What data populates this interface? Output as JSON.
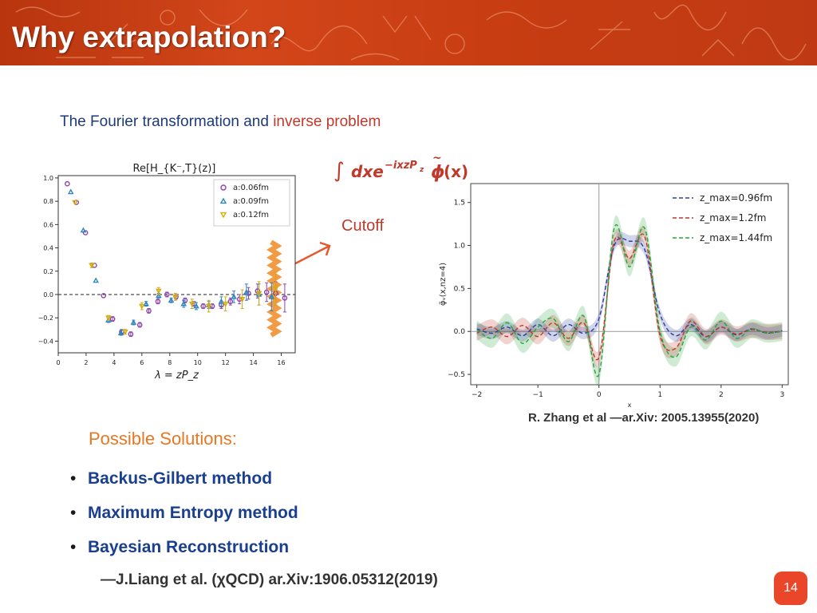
{
  "slide": {
    "title": "Why extrapolation?",
    "subtitle_part1": "The Fourier transformation and ",
    "subtitle_highlight": "inverse problem",
    "cutoff_label": "Cutoff",
    "citation_right": "R. Zhang et al —ar.Xiv: 2005.13955(2020)",
    "solutions_heading": "Possible Solutions:",
    "solutions": [
      "Backus-Gilbert method",
      "Maximum Entropy method",
      "Bayesian Reconstruction"
    ],
    "citation_bottom": "—J.Liang et al. (χQCD) ar.Xiv:1906.05312(2019)",
    "page_number": "14",
    "colors": {
      "banner": "#c83d12",
      "highlight": "#c0392b",
      "solutions_heading": "#e87722",
      "solutions": "#1a3f8f",
      "page_badge": "#e9462a"
    }
  },
  "chart_data": [
    {
      "type": "scatter",
      "title": "Re[H_{K⁻,T}(z)]",
      "xlabel": "λ = zP_z",
      "ylabel": "",
      "xlim": [
        0,
        17
      ],
      "ylim": [
        -0.5,
        1.02
      ],
      "xticks": [
        0,
        2,
        4,
        6,
        8,
        10,
        12,
        14,
        16
      ],
      "yticks": [
        1.0,
        0.8,
        0.6,
        0.4,
        0.2,
        0.0,
        -0.2,
        -0.4
      ],
      "reference_line_y": 0,
      "legend_position": "top-right",
      "series": [
        {
          "name": "a:0.06fm",
          "color": "#8e44ad",
          "marker": "circle",
          "x": [
            0.65,
            1.3,
            1.95,
            2.6,
            3.25,
            3.9,
            4.55,
            5.2,
            5.85,
            6.5,
            7.15,
            7.8,
            8.45,
            9.1,
            9.75,
            10.4,
            11.05,
            11.7,
            12.35,
            13.0,
            13.65,
            14.3,
            14.95,
            15.6,
            16.25
          ],
          "y": [
            0.95,
            0.79,
            0.53,
            0.25,
            -0.01,
            -0.21,
            -0.32,
            -0.34,
            -0.26,
            -0.14,
            -0.06,
            0.0,
            -0.02,
            -0.05,
            -0.08,
            -0.1,
            -0.1,
            -0.09,
            -0.06,
            -0.04,
            0.01,
            0.03,
            0.02,
            0.01,
            -0.03
          ],
          "yerr": [
            0.01,
            0.01,
            0.01,
            0.01,
            0.01,
            0.02,
            0.02,
            0.02,
            0.02,
            0.02,
            0.02,
            0.02,
            0.02,
            0.02,
            0.02,
            0.02,
            0.02,
            0.03,
            0.03,
            0.04,
            0.05,
            0.06,
            0.08,
            0.1,
            0.12
          ]
        },
        {
          "name": "a:0.09fm",
          "color": "#2e86c1",
          "marker": "triangle-up",
          "x": [
            0.9,
            1.8,
            2.7,
            3.6,
            4.5,
            5.4,
            6.3,
            7.2,
            8.1,
            9.0,
            9.9,
            10.8,
            11.7,
            12.6,
            13.5,
            14.4,
            15.3
          ],
          "y": [
            0.88,
            0.55,
            0.12,
            -0.22,
            -0.33,
            -0.24,
            -0.08,
            -0.01,
            -0.05,
            -0.08,
            -0.1,
            -0.09,
            -0.06,
            -0.02,
            0.02,
            0.0,
            -0.02
          ],
          "yerr": [
            0.01,
            0.01,
            0.01,
            0.02,
            0.02,
            0.02,
            0.02,
            0.02,
            0.02,
            0.03,
            0.03,
            0.03,
            0.04,
            0.05,
            0.07,
            0.09,
            0.12
          ]
        },
        {
          "name": "a:0.12fm",
          "color": "#d4ac0d",
          "marker": "triangle-down",
          "x": [
            1.2,
            2.4,
            3.6,
            4.8,
            6.0,
            7.2,
            8.4,
            9.6,
            10.8,
            12.0,
            13.2,
            14.4,
            15.6
          ],
          "y": [
            0.79,
            0.25,
            -0.2,
            -0.32,
            -0.1,
            0.03,
            -0.02,
            -0.08,
            -0.1,
            -0.08,
            -0.04,
            0.01,
            0.05
          ],
          "yerr": [
            0.01,
            0.02,
            0.02,
            0.02,
            0.03,
            0.03,
            0.03,
            0.04,
            0.05,
            0.06,
            0.08,
            0.1,
            0.14
          ]
        }
      ],
      "cutoff_band": {
        "x": 15.5,
        "y_range": [
          -0.35,
          0.45
        ],
        "color": "#f08a24"
      }
    },
    {
      "type": "line",
      "title": "",
      "xlabel": "x",
      "ylabel": "φ̃ᵥ(x,nz=4)",
      "xlim": [
        -2.1,
        3.1
      ],
      "ylim": [
        -0.62,
        1.72
      ],
      "xticks": [
        -2,
        -1,
        0,
        1,
        2,
        3
      ],
      "yticks": [
        -0.5,
        0.0,
        0.5,
        1.0,
        1.5
      ],
      "reference_line_x": 0,
      "legend_position": "top-right",
      "series": [
        {
          "name": "z_max=0.96fm",
          "color": "#2c3e9e",
          "band": 0.07,
          "x": [
            -2.0,
            -1.75,
            -1.5,
            -1.25,
            -1.0,
            -0.75,
            -0.5,
            -0.25,
            0.0,
            0.25,
            0.5,
            0.75,
            1.0,
            1.25,
            1.5,
            1.75,
            2.0,
            2.25,
            2.5,
            2.75,
            3.0
          ],
          "y": [
            0.03,
            -0.02,
            0.05,
            -0.05,
            0.08,
            -0.05,
            0.08,
            -0.02,
            0.15,
            1.0,
            1.05,
            0.95,
            0.2,
            -0.05,
            0.08,
            -0.06,
            0.05,
            -0.04,
            0.03,
            -0.02,
            0.01
          ]
        },
        {
          "name": "z_max=1.2fm",
          "color": "#c0392b",
          "band": 0.09,
          "x": [
            -2.0,
            -1.75,
            -1.5,
            -1.25,
            -1.0,
            -0.75,
            -0.5,
            -0.25,
            0.0,
            0.25,
            0.5,
            0.75,
            1.0,
            1.25,
            1.5,
            1.75,
            2.0,
            2.25,
            2.5,
            2.75,
            3.0
          ],
          "y": [
            -0.02,
            0.05,
            -0.06,
            0.07,
            -0.06,
            0.1,
            -0.08,
            0.1,
            -0.3,
            1.05,
            0.85,
            1.1,
            -0.05,
            -0.2,
            0.12,
            -0.06,
            0.05,
            -0.03,
            0.02,
            -0.01,
            0.0
          ]
        },
        {
          "name": "z_max=1.44fm",
          "color": "#27a63c",
          "band": 0.11,
          "x": [
            -2.0,
            -1.75,
            -1.5,
            -1.25,
            -1.0,
            -0.75,
            -0.5,
            -0.25,
            0.0,
            0.25,
            0.5,
            0.75,
            1.0,
            1.25,
            1.5,
            1.75,
            2.0,
            2.25,
            2.5,
            2.75,
            3.0
          ],
          "y": [
            0.02,
            -0.08,
            0.1,
            -0.14,
            0.05,
            0.15,
            -0.12,
            0.18,
            -0.5,
            1.2,
            0.75,
            1.2,
            0.0,
            -0.3,
            0.05,
            -0.1,
            0.12,
            -0.08,
            0.03,
            -0.02,
            0.0
          ]
        }
      ]
    }
  ]
}
